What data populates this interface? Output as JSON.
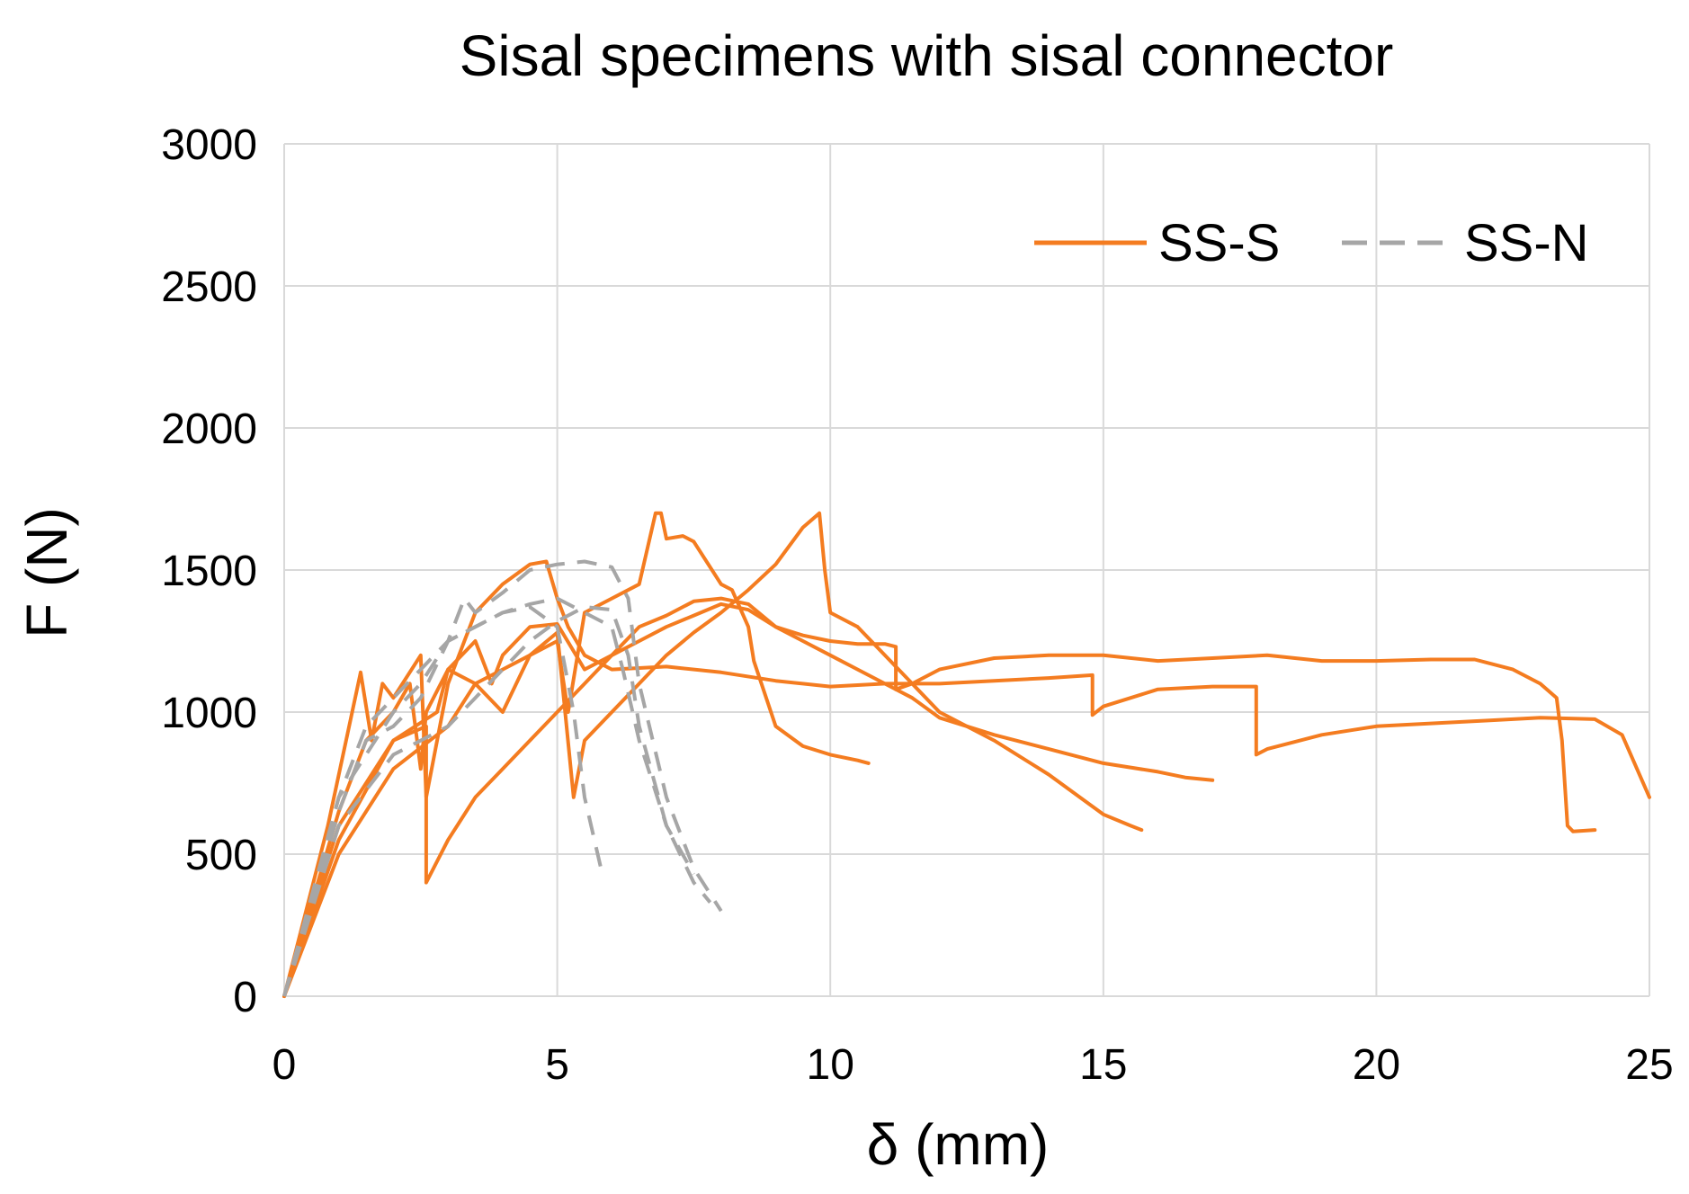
{
  "chart_data": {
    "type": "line",
    "title": "Sisal specimens with sisal connector",
    "xlabel": "δ (mm)",
    "ylabel": "F (N)",
    "xlim": [
      0,
      25
    ],
    "ylim": [
      0,
      3000
    ],
    "xticks": [
      0,
      5,
      10,
      15,
      20,
      25
    ],
    "yticks": [
      0,
      500,
      1000,
      1500,
      2000,
      2500,
      3000
    ],
    "grid": true,
    "legend_position": "top-right",
    "legend": [
      {
        "label": "SS-S",
        "color": "#f47c20",
        "dash": "solid"
      },
      {
        "label": "SS-N",
        "color": "#a6a6a6",
        "dash": "dashed"
      }
    ],
    "series": [
      {
        "group": "SS-S",
        "color": "#f47c20",
        "dashed": false,
        "points": [
          [
            0,
            0
          ],
          [
            0.8,
            600
          ],
          [
            1.4,
            1140
          ],
          [
            1.6,
            900
          ],
          [
            1.8,
            1100
          ],
          [
            2,
            1050
          ],
          [
            2.5,
            1200
          ],
          [
            2.6,
            700
          ],
          [
            3,
            1100
          ],
          [
            3.5,
            1350
          ],
          [
            4,
            1450
          ],
          [
            4.5,
            1520
          ],
          [
            4.8,
            1530
          ],
          [
            5,
            1400
          ],
          [
            5.2,
            1300
          ],
          [
            5.5,
            1200
          ],
          [
            6,
            1150
          ],
          [
            7,
            1160
          ],
          [
            8,
            1140
          ],
          [
            9,
            1110
          ],
          [
            10,
            1090
          ],
          [
            11,
            1100
          ],
          [
            12,
            1100
          ],
          [
            13,
            1110
          ],
          [
            14,
            1120
          ],
          [
            14.8,
            1130
          ],
          [
            14.8,
            990
          ],
          [
            15,
            1020
          ],
          [
            16,
            1080
          ],
          [
            17,
            1090
          ],
          [
            17.8,
            1090
          ],
          [
            17.8,
            850
          ],
          [
            18,
            870
          ],
          [
            19,
            920
          ],
          [
            20,
            950
          ],
          [
            21,
            960
          ],
          [
            22,
            970
          ],
          [
            23,
            980
          ],
          [
            24,
            975
          ],
          [
            24.5,
            920
          ],
          [
            25,
            700
          ]
        ]
      },
      {
        "group": "SS-S",
        "color": "#f47c20",
        "dashed": false,
        "points": [
          [
            0,
            0
          ],
          [
            1,
            650
          ],
          [
            1.5,
            900
          ],
          [
            2,
            1000
          ],
          [
            2.3,
            1100
          ],
          [
            2.5,
            800
          ],
          [
            2.6,
            1000
          ],
          [
            3,
            1150
          ],
          [
            3.5,
            1250
          ],
          [
            3.8,
            1100
          ],
          [
            4,
            1200
          ],
          [
            4.5,
            1300
          ],
          [
            5,
            1310
          ],
          [
            5.5,
            1150
          ],
          [
            6,
            1200
          ],
          [
            6.5,
            1250
          ],
          [
            7,
            1300
          ],
          [
            7.5,
            1340
          ],
          [
            8,
            1380
          ],
          [
            8.5,
            1360
          ],
          [
            9,
            1300
          ],
          [
            9.5,
            1270
          ],
          [
            10,
            1250
          ],
          [
            10.5,
            1240
          ],
          [
            11,
            1240
          ],
          [
            11.2,
            1230
          ],
          [
            11.2,
            1080
          ],
          [
            11.5,
            1100
          ],
          [
            12,
            1150
          ],
          [
            13,
            1190
          ],
          [
            14,
            1200
          ],
          [
            15,
            1200
          ],
          [
            16,
            1180
          ],
          [
            17,
            1190
          ],
          [
            18,
            1200
          ],
          [
            19,
            1180
          ],
          [
            20,
            1180
          ],
          [
            21,
            1185
          ],
          [
            21.8,
            1185
          ],
          [
            22.5,
            1150
          ],
          [
            23,
            1100
          ],
          [
            23.3,
            1050
          ],
          [
            23.4,
            900
          ],
          [
            23.5,
            600
          ],
          [
            23.6,
            580
          ],
          [
            24,
            585
          ]
        ]
      },
      {
        "group": "SS-S",
        "color": "#f47c20",
        "dashed": false,
        "points": [
          [
            0,
            0
          ],
          [
            1,
            600
          ],
          [
            2,
            900
          ],
          [
            2.6,
            950
          ],
          [
            2.6,
            400
          ],
          [
            3,
            550
          ],
          [
            3.5,
            700
          ],
          [
            4,
            800
          ],
          [
            4.5,
            900
          ],
          [
            5,
            1000
          ],
          [
            5.5,
            1100
          ],
          [
            6,
            1200
          ],
          [
            6.5,
            1300
          ],
          [
            7,
            1340
          ],
          [
            7.5,
            1390
          ],
          [
            8,
            1400
          ],
          [
            8.5,
            1380
          ],
          [
            9,
            1300
          ],
          [
            9.5,
            1250
          ],
          [
            10,
            1200
          ],
          [
            10.5,
            1150
          ],
          [
            11,
            1100
          ],
          [
            11.5,
            1050
          ],
          [
            12,
            980
          ],
          [
            13,
            920
          ],
          [
            14,
            870
          ],
          [
            15,
            820
          ],
          [
            16,
            790
          ],
          [
            16.5,
            770
          ],
          [
            17,
            760
          ]
        ]
      },
      {
        "group": "SS-S",
        "color": "#f47c20",
        "dashed": false,
        "points": [
          [
            0,
            0
          ],
          [
            1,
            500
          ],
          [
            2,
            800
          ],
          [
            3,
            950
          ],
          [
            3.5,
            1100
          ],
          [
            4,
            1000
          ],
          [
            4.5,
            1200
          ],
          [
            5,
            1250
          ],
          [
            5.2,
            1000
          ],
          [
            5.5,
            1350
          ],
          [
            6,
            1400
          ],
          [
            6.5,
            1450
          ],
          [
            6.8,
            1700
          ],
          [
            6.9,
            1700
          ],
          [
            7,
            1610
          ],
          [
            7.3,
            1620
          ],
          [
            7.5,
            1600
          ],
          [
            8,
            1450
          ],
          [
            8.2,
            1430
          ],
          [
            8.5,
            1300
          ],
          [
            8.6,
            1180
          ],
          [
            9,
            950
          ],
          [
            9.5,
            880
          ],
          [
            10,
            850
          ],
          [
            10.5,
            830
          ],
          [
            10.7,
            820
          ]
        ]
      },
      {
        "group": "SS-S",
        "color": "#f47c20",
        "dashed": false,
        "points": [
          [
            0,
            0
          ],
          [
            1,
            550
          ],
          [
            2,
            900
          ],
          [
            2.8,
            1000
          ],
          [
            3,
            1150
          ],
          [
            3.5,
            1100
          ],
          [
            4,
            1150
          ],
          [
            4.5,
            1200
          ],
          [
            5,
            1280
          ],
          [
            5.3,
            700
          ],
          [
            5.5,
            900
          ],
          [
            6,
            1000
          ],
          [
            6.5,
            1100
          ],
          [
            7,
            1200
          ],
          [
            7.5,
            1280
          ],
          [
            8,
            1350
          ],
          [
            8.5,
            1430
          ],
          [
            9,
            1520
          ],
          [
            9.5,
            1650
          ],
          [
            9.8,
            1700
          ],
          [
            9.9,
            1500
          ],
          [
            10,
            1350
          ],
          [
            10.5,
            1300
          ],
          [
            11,
            1200
          ],
          [
            11.5,
            1100
          ],
          [
            12,
            1000
          ],
          [
            13,
            900
          ],
          [
            14,
            780
          ],
          [
            15,
            640
          ],
          [
            15.5,
            600
          ],
          [
            15.7,
            585
          ]
        ]
      },
      {
        "group": "SS-N",
        "color": "#a6a6a6",
        "dashed": true,
        "points": [
          [
            0,
            0
          ],
          [
            1,
            700
          ],
          [
            2,
            1000
          ],
          [
            2.5,
            1100
          ],
          [
            3,
            1250
          ],
          [
            3.5,
            1300
          ],
          [
            4,
            1350
          ],
          [
            4.5,
            1370
          ],
          [
            5,
            1300
          ],
          [
            5.3,
            1000
          ],
          [
            5.5,
            700
          ],
          [
            5.8,
            450
          ]
        ]
      },
      {
        "group": "SS-N",
        "color": "#a6a6a6",
        "dashed": true,
        "points": [
          [
            0,
            0
          ],
          [
            1,
            650
          ],
          [
            1.5,
            900
          ],
          [
            2,
            950
          ],
          [
            2.5,
            1050
          ],
          [
            3,
            1250
          ],
          [
            3.3,
            1400
          ],
          [
            3.5,
            1350
          ],
          [
            4,
            1420
          ],
          [
            4.5,
            1500
          ],
          [
            5,
            1520
          ],
          [
            5.5,
            1530
          ],
          [
            6,
            1510
          ],
          [
            6.3,
            1400
          ],
          [
            6.5,
            1100
          ],
          [
            7,
            700
          ],
          [
            7.5,
            450
          ],
          [
            8,
            300
          ]
        ]
      },
      {
        "group": "SS-N",
        "color": "#a6a6a6",
        "dashed": true,
        "points": [
          [
            0,
            0
          ],
          [
            1,
            600
          ],
          [
            2,
            850
          ],
          [
            2.5,
            900
          ],
          [
            3,
            950
          ],
          [
            3.5,
            1050
          ],
          [
            4,
            1150
          ],
          [
            4.5,
            1250
          ],
          [
            5,
            1320
          ],
          [
            5.5,
            1370
          ],
          [
            6,
            1360
          ],
          [
            6.3,
            1200
          ],
          [
            6.5,
            950
          ],
          [
            7,
            600
          ],
          [
            7.5,
            400
          ],
          [
            7.8,
            330
          ]
        ]
      },
      {
        "group": "SS-N",
        "color": "#a6a6a6",
        "dashed": true,
        "points": [
          [
            0,
            0
          ],
          [
            1,
            700
          ],
          [
            1.5,
            950
          ],
          [
            2,
            1050
          ],
          [
            2.5,
            1150
          ],
          [
            3,
            1250
          ],
          [
            3.5,
            1300
          ],
          [
            4,
            1350
          ],
          [
            4.5,
            1380
          ],
          [
            5,
            1400
          ],
          [
            5.5,
            1350
          ],
          [
            6,
            1300
          ],
          [
            6.2,
            1150
          ],
          [
            6.5,
            900
          ],
          [
            7,
            600
          ],
          [
            7.5,
            430
          ]
        ]
      }
    ]
  }
}
